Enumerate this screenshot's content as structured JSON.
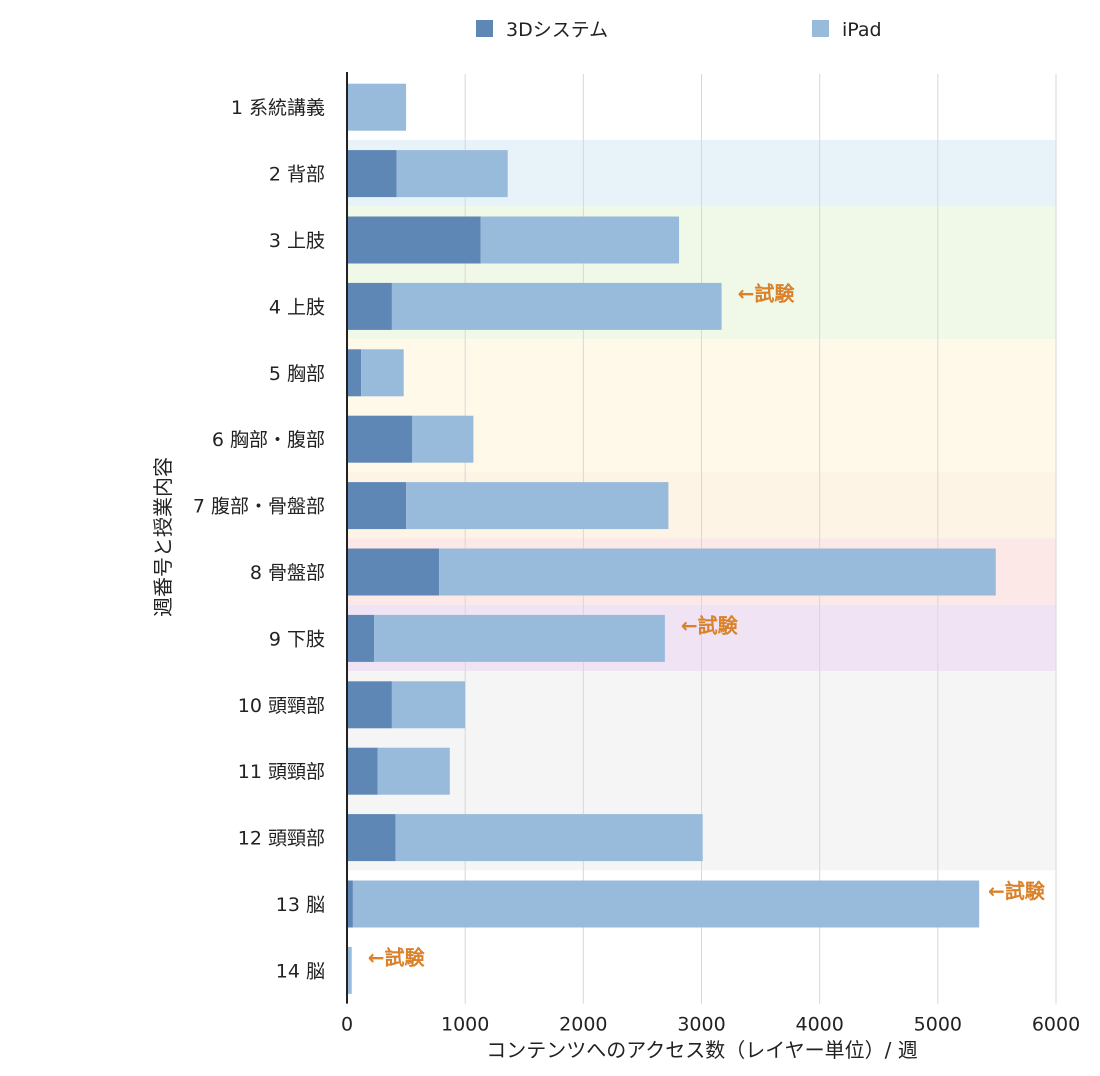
{
  "chart_data": {
    "type": "bar",
    "orientation": "horizontal",
    "stacked": true,
    "title": "",
    "xlabel": "コンテンツへのアクセス数（レイヤー単位）/ 週",
    "ylabel": "週番号と授業内容",
    "xlim": [
      0,
      6000
    ],
    "xticks": [
      0,
      1000,
      2000,
      3000,
      4000,
      5000,
      6000
    ],
    "xtick_labels": [
      "0",
      "1000",
      "2000",
      "3000",
      "4000",
      "5000",
      "6000"
    ],
    "grid": "vertical",
    "legend_position": "top",
    "categories": [
      "1 系統講義",
      "2 背部",
      "3 上肢",
      "4 上肢",
      "5 胸部",
      "6 胸部・腹部",
      "7 腹部・骨盤部",
      "8 骨盤部",
      "9 下肢",
      "10 頭頸部",
      "11 頭頸部",
      "12 頭頸部",
      "13 脳",
      "14 脳"
    ],
    "series": [
      {
        "name": "3Dシステム",
        "color": "#5f87b5",
        "values": [
          0,
          420,
          1130,
          380,
          120,
          550,
          500,
          780,
          230,
          380,
          260,
          410,
          50,
          0
        ]
      },
      {
        "name": "iPad",
        "color": "#98bbdb",
        "values": [
          500,
          940,
          1680,
          2790,
          360,
          520,
          2220,
          4710,
          2460,
          620,
          610,
          2600,
          5300,
          40
        ]
      }
    ],
    "annotations": [
      {
        "category_index": 3,
        "text": "←試験"
      },
      {
        "category_index": 8,
        "text": "←試験"
      },
      {
        "category_index": 12,
        "text": "←試験"
      },
      {
        "category_index": 13,
        "text": "←試験"
      }
    ],
    "annotation_color": "#d9822b",
    "background_bands": [
      {
        "from": 1,
        "to": 1,
        "color": "#e8f3f9"
      },
      {
        "from": 2,
        "to": 3,
        "color": "#f0f9e8"
      },
      {
        "from": 4,
        "to": 5,
        "color": "#fff9ea"
      },
      {
        "from": 6,
        "to": 6,
        "color": "#fef4e6"
      },
      {
        "from": 7,
        "to": 7,
        "color": "#fde8e8"
      },
      {
        "from": 8,
        "to": 8,
        "color": "#f0e4f4"
      },
      {
        "from": 9,
        "to": 11,
        "color": "#f5f5f5"
      }
    ]
  }
}
